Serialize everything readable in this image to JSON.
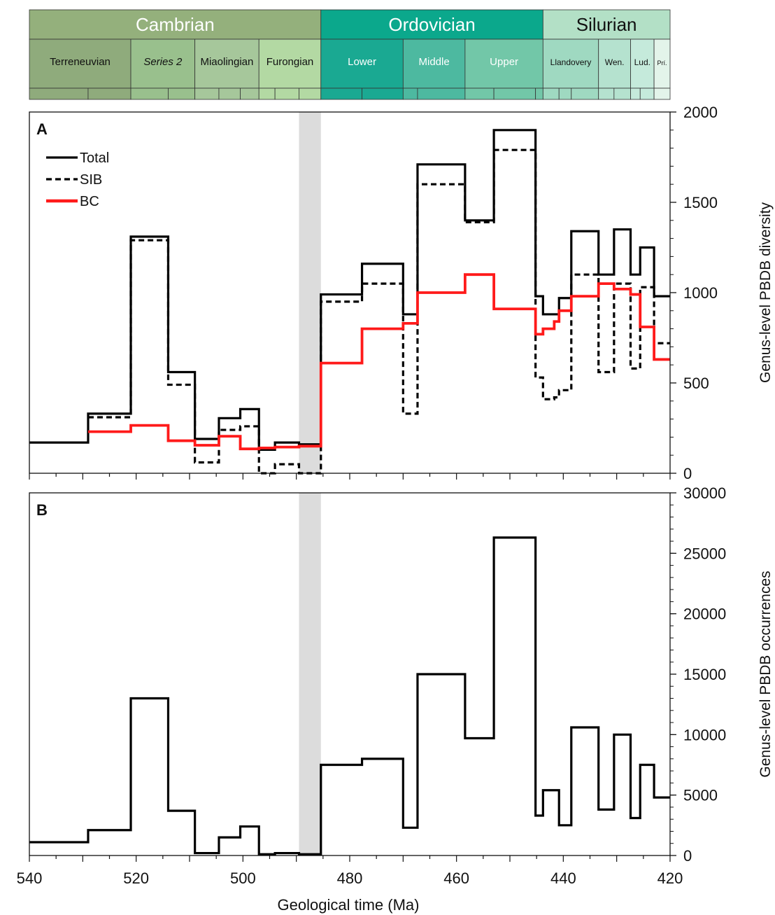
{
  "timescale": {
    "periods": [
      {
        "name": "Cambrian",
        "start": 540,
        "end": 485.4,
        "color": "#94b07c",
        "text_color": "#ffffff"
      },
      {
        "name": "Ordovician",
        "start": 485.4,
        "end": 443.8,
        "color": "#0ba88c",
        "text_color": "#ffffff"
      },
      {
        "name": "Silurian",
        "start": 443.8,
        "end": 419.2,
        "color": "#b3e0c6",
        "text_color": "#111111"
      }
    ],
    "epochs": [
      {
        "name": "Terreneuvian",
        "start": 540,
        "end": 521,
        "color": "#8fab7c",
        "italic": false,
        "text_color": "#111111",
        "size": "sm"
      },
      {
        "name": "Series 2",
        "start": 521,
        "end": 509,
        "color": "#99c08d",
        "italic": true,
        "text_color": "#111111",
        "size": "sm"
      },
      {
        "name": "Miaolingian",
        "start": 509,
        "end": 497,
        "color": "#a6c79b",
        "italic": false,
        "text_color": "#111111",
        "size": "sm"
      },
      {
        "name": "Furongian",
        "start": 497,
        "end": 485.4,
        "color": "#b3d9a3",
        "italic": false,
        "text_color": "#111111",
        "size": "sm"
      },
      {
        "name": "Lower",
        "start": 485.4,
        "end": 470,
        "color": "#1aa992",
        "italic": false,
        "text_color": "#ffffff",
        "size": "sm"
      },
      {
        "name": "Middle",
        "start": 470,
        "end": 458.4,
        "color": "#4db9a0",
        "italic": false,
        "text_color": "#ffffff",
        "size": "sm"
      },
      {
        "name": "Upper",
        "start": 458.4,
        "end": 443.8,
        "color": "#72c7a8",
        "italic": false,
        "text_color": "#ffffff",
        "size": "sm"
      },
      {
        "name": "Llandovery",
        "start": 443.8,
        "end": 433.4,
        "color": "#9fd9c1",
        "italic": false,
        "text_color": "#111111",
        "size": "xs"
      },
      {
        "name": "Wen.",
        "start": 433.4,
        "end": 427.4,
        "color": "#b5e2cf",
        "italic": false,
        "text_color": "#111111",
        "size": "xs"
      },
      {
        "name": "Lud.",
        "start": 427.4,
        "end": 423,
        "color": "#c5eadb",
        "italic": false,
        "text_color": "#111111",
        "size": "xs"
      },
      {
        "name": "Prí.",
        "start": 423,
        "end": 419.2,
        "color": "#e3f4ea",
        "italic": false,
        "text_color": "#111111",
        "size": "xxs"
      }
    ],
    "stage_bounds": [
      540,
      529,
      521,
      514,
      509,
      504.5,
      500.5,
      497,
      494,
      489.5,
      485.4,
      477.7,
      470,
      467.3,
      458.4,
      453,
      445.2,
      443.8,
      440.8,
      438.5,
      433.4,
      430.5,
      427.4,
      425.6,
      423,
      419.2
    ]
  },
  "gray_band": [
    489.5,
    485.4
  ],
  "chart_data": [
    {
      "panel": "A",
      "type": "line",
      "step": true,
      "ylabel": "Genus-level PBDB diversity",
      "xlim": [
        540,
        420
      ],
      "ylim": [
        0,
        2000
      ],
      "yticks": [
        0,
        500,
        1000,
        1500,
        2000
      ],
      "legend_position": "top-left",
      "series": [
        {
          "name": "Total",
          "color": "#000000",
          "dash": "solid",
          "edges": [
            540,
            529,
            521,
            514,
            509,
            504.5,
            500.5,
            497,
            494,
            489.5,
            485.4,
            477.7,
            470,
            467.3,
            458.4,
            453,
            445.2,
            443.8,
            440.8,
            438.5,
            433.4,
            430.5,
            427.4,
            425.6,
            423,
            420
          ],
          "values": [
            170,
            330,
            1310,
            560,
            190,
            305,
            355,
            130,
            170,
            160,
            990,
            1160,
            880,
            1710,
            1400,
            1900,
            980,
            880,
            970,
            1340,
            1100,
            1350,
            1100,
            1250,
            980
          ]
        },
        {
          "name": "SIB",
          "color": "#000000",
          "dash": "dashed",
          "edges": [
            529,
            521,
            514,
            509,
            504.5,
            500.5,
            497,
            494,
            489.5,
            485.4,
            477.7,
            470,
            467.3,
            458.4,
            453,
            445.2,
            443.8,
            441.7,
            440.8,
            438.5,
            433.4,
            430.5,
            427.4,
            425.6,
            423,
            420
          ],
          "values": [
            310,
            1290,
            490,
            60,
            240,
            260,
            0,
            50,
            0,
            950,
            1050,
            330,
            1600,
            1390,
            1790,
            530,
            410,
            420,
            460,
            1100,
            560,
            1050,
            580,
            1030,
            720
          ]
        },
        {
          "name": "BC",
          "color": "#ff1a1a",
          "dash": "solid",
          "edges": [
            529,
            521,
            514,
            509,
            504.5,
            500.5,
            497,
            494,
            489.5,
            485.4,
            477.7,
            470,
            467.3,
            458.4,
            453,
            445.2,
            443.8,
            441.7,
            440.8,
            438.5,
            433.4,
            430.5,
            427.4,
            425.6,
            423,
            420
          ],
          "values": [
            230,
            265,
            180,
            155,
            205,
            135,
            140,
            145,
            150,
            610,
            800,
            830,
            1000,
            1100,
            910,
            770,
            800,
            840,
            900,
            980,
            1050,
            1020,
            990,
            810,
            630
          ]
        }
      ]
    },
    {
      "panel": "B",
      "type": "line",
      "step": true,
      "xlabel": "Geological time (Ma)",
      "ylabel": "Genus-level PBDB occurrences",
      "xlim": [
        540,
        420
      ],
      "ylim": [
        0,
        30000
      ],
      "yticks": [
        0,
        5000,
        10000,
        15000,
        20000,
        25000,
        30000
      ],
      "xticks": [
        540,
        520,
        500,
        480,
        460,
        440,
        420
      ],
      "series": [
        {
          "name": "",
          "color": "#000000",
          "dash": "solid",
          "edges": [
            540,
            529,
            521,
            514,
            509,
            504.5,
            500.5,
            497,
            494,
            489.5,
            485.4,
            477.7,
            470,
            467.3,
            458.4,
            453,
            445.2,
            443.8,
            440.8,
            438.5,
            433.4,
            430.5,
            427.4,
            425.6,
            423,
            420
          ],
          "values": [
            1100,
            2100,
            13000,
            3700,
            200,
            1500,
            2400,
            100,
            200,
            100,
            7500,
            8000,
            2300,
            15000,
            9700,
            26300,
            3300,
            5400,
            2500,
            10600,
            3800,
            10000,
            3100,
            7500,
            4800
          ]
        }
      ]
    }
  ]
}
